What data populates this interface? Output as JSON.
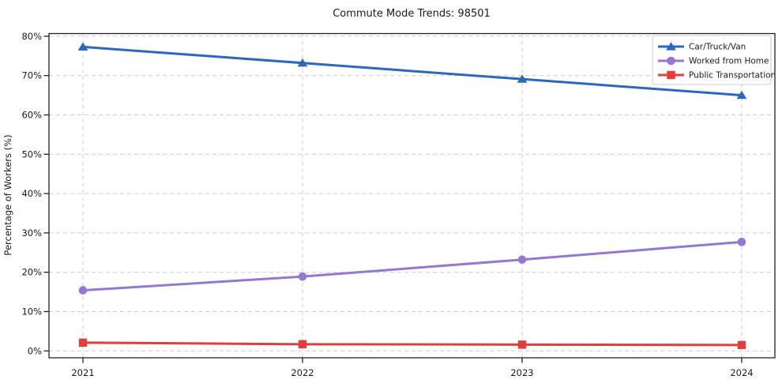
{
  "chart_data": {
    "type": "line",
    "title": "Commute Mode Trends: 98501",
    "xlabel": "",
    "ylabel": "Percentage of Workers (%)",
    "categories": [
      "2021",
      "2022",
      "2023",
      "2024"
    ],
    "series": [
      {
        "name": "Car/Truck/Van",
        "color": "#2b68bc",
        "marker": "triangle",
        "values": [
          77.3,
          73.2,
          69.1,
          65.0
        ]
      },
      {
        "name": "Worked from Home",
        "color": "#9677d2",
        "marker": "circle",
        "values": [
          15.4,
          18.9,
          23.2,
          27.7
        ]
      },
      {
        "name": "Public Transportation",
        "color": "#e23e3e",
        "marker": "square",
        "values": [
          2.1,
          1.7,
          1.6,
          1.5
        ]
      }
    ],
    "ylim": [
      0,
      80
    ],
    "ytick_step": 10,
    "ytick_labels": [
      "0%",
      "10%",
      "20%",
      "30%",
      "40%",
      "50%",
      "60%",
      "70%",
      "80%"
    ],
    "grid": true,
    "grid_style": "dashed",
    "grid_color": "#cccccc",
    "spine_color": "#222222",
    "text_color": "#1a1a1a",
    "background": "#ffffff",
    "legend_position": "upper right"
  }
}
